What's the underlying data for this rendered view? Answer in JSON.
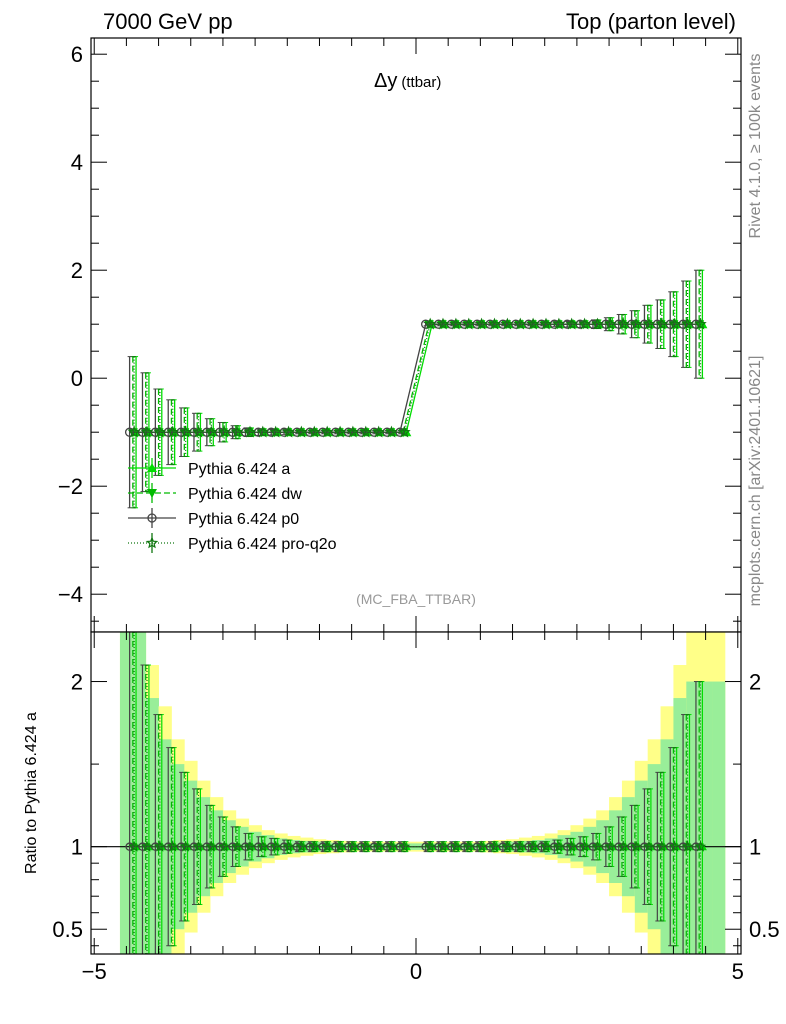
{
  "header": {
    "left": "7000 GeV pp",
    "right": "Top (parton level)"
  },
  "side_labels": {
    "rivet": "Rivet 4.1.0, ≥ 100k events",
    "mcplots": "mcplots.cern.ch [arXiv:2401.10621]"
  },
  "chart_data": {
    "type": "line",
    "title": "Δy (ttbar)",
    "title_main": "Δy",
    "title_sub": "(ttbar)",
    "analysis": "(MC_FBA_TTBAR)",
    "xlabel": "",
    "ylabel": "",
    "xlim": [
      -5.05,
      5.05
    ],
    "ylim": [
      -4.7,
      6.3
    ],
    "x_ticks": [
      -5,
      0,
      5
    ],
    "x_tick_labels": [
      "−5",
      "0",
      "5"
    ],
    "y_ticks": [
      -4,
      -2,
      0,
      2,
      4,
      6
    ],
    "y_tick_labels": [
      "−4",
      "−2",
      "0",
      "2",
      "4",
      "6"
    ],
    "bins": [
      -4.4,
      -4.2,
      -4.0,
      -3.8,
      -3.6,
      -3.4,
      -3.2,
      -3.0,
      -2.8,
      -2.6,
      -2.4,
      -2.2,
      -2.0,
      -1.8,
      -1.6,
      -1.4,
      -1.2,
      -1.0,
      -0.8,
      -0.6,
      -0.4,
      -0.2,
      0.2,
      0.4,
      0.6,
      0.8,
      1.0,
      1.2,
      1.4,
      1.6,
      1.8,
      2.0,
      2.2,
      2.4,
      2.6,
      2.8,
      3.0,
      3.2,
      3.4,
      3.6,
      3.8,
      4.0,
      4.2,
      4.4
    ],
    "series": [
      {
        "name": "Pythia 6.424 a",
        "color": "#00dd00",
        "dash": "",
        "marker": "triangle-up",
        "x_offset": 0.05,
        "values": [
          -1,
          -1,
          -1,
          -1,
          -1,
          -1,
          -1,
          -1,
          -1,
          -1,
          -1,
          -1,
          -1,
          -1,
          -1,
          -1,
          -1,
          -1,
          -1,
          -1,
          -1,
          -1,
          1,
          1,
          1,
          1,
          1,
          1,
          1,
          1,
          1,
          1,
          1,
          1,
          1,
          1,
          1,
          1,
          1,
          1,
          1,
          1,
          1,
          1
        ],
        "errors": [
          1.4,
          1.1,
          0.8,
          0.6,
          0.45,
          0.35,
          0.25,
          0.18,
          0.12,
          0.08,
          0.06,
          0.05,
          0.04,
          0.03,
          0.03,
          0.03,
          0.03,
          0.03,
          0.03,
          0.03,
          0.03,
          0.03,
          0.03,
          0.03,
          0.03,
          0.03,
          0.03,
          0.03,
          0.03,
          0.03,
          0.03,
          0.03,
          0.04,
          0.05,
          0.06,
          0.08,
          0.12,
          0.18,
          0.25,
          0.35,
          0.45,
          0.6,
          0.8,
          1.0
        ]
      },
      {
        "name": "Pythia 6.424 dw",
        "color": "#00bb00",
        "dash": "6,3",
        "marker": "triangle-down",
        "x_offset": 0.0,
        "values": [
          -1,
          -1,
          -1,
          -1,
          -1,
          -1,
          -1,
          -1,
          -1,
          -1,
          -1,
          -1,
          -1,
          -1,
          -1,
          -1,
          -1,
          -1,
          -1,
          -1,
          -1,
          -1,
          1,
          1,
          1,
          1,
          1,
          1,
          1,
          1,
          1,
          1,
          1,
          1,
          1,
          1,
          1,
          1,
          1,
          1,
          1,
          1,
          1,
          1
        ],
        "errors": [
          1.4,
          1.1,
          0.8,
          0.6,
          0.45,
          0.35,
          0.25,
          0.18,
          0.12,
          0.08,
          0.06,
          0.05,
          0.04,
          0.03,
          0.03,
          0.03,
          0.03,
          0.03,
          0.03,
          0.03,
          0.03,
          0.03,
          0.03,
          0.03,
          0.03,
          0.03,
          0.03,
          0.03,
          0.03,
          0.03,
          0.03,
          0.03,
          0.04,
          0.05,
          0.06,
          0.08,
          0.12,
          0.18,
          0.25,
          0.35,
          0.45,
          0.6,
          0.8,
          1.0
        ]
      },
      {
        "name": "Pythia 6.424 p0",
        "color": "#444444",
        "dash": "",
        "marker": "circle",
        "x_offset": -0.05,
        "values": [
          -1,
          -1,
          -1,
          -1,
          -1,
          -1,
          -1,
          -1,
          -1,
          -1,
          -1,
          -1,
          -1,
          -1,
          -1,
          -1,
          -1,
          -1,
          -1,
          -1,
          -1,
          -1,
          1,
          1,
          1,
          1,
          1,
          1,
          1,
          1,
          1,
          1,
          1,
          1,
          1,
          1,
          1,
          1,
          1,
          1,
          1,
          1,
          1,
          1
        ],
        "errors": [
          1.4,
          1.1,
          0.8,
          0.6,
          0.45,
          0.35,
          0.25,
          0.18,
          0.12,
          0.08,
          0.06,
          0.05,
          0.04,
          0.03,
          0.03,
          0.03,
          0.03,
          0.03,
          0.03,
          0.03,
          0.03,
          0.03,
          0.03,
          0.03,
          0.03,
          0.03,
          0.03,
          0.03,
          0.03,
          0.03,
          0.03,
          0.03,
          0.04,
          0.05,
          0.06,
          0.08,
          0.12,
          0.18,
          0.25,
          0.35,
          0.45,
          0.6,
          0.8,
          1.0
        ]
      },
      {
        "name": "Pythia 6.424 pro-q2o",
        "color": "#117711",
        "dash": "1,2",
        "marker": "star",
        "x_offset": 0.02,
        "values": [
          -1,
          -1,
          -1,
          -1,
          -1,
          -1,
          -1,
          -1,
          -1,
          -1,
          -1,
          -1,
          -1,
          -1,
          -1,
          -1,
          -1,
          -1,
          -1,
          -1,
          -1,
          -1,
          1,
          1,
          1,
          1,
          1,
          1,
          1,
          1,
          1,
          1,
          1,
          1,
          1,
          1,
          1,
          1,
          1,
          1,
          1,
          1,
          1,
          1
        ],
        "errors": [
          1.4,
          1.1,
          0.8,
          0.6,
          0.45,
          0.35,
          0.25,
          0.18,
          0.12,
          0.08,
          0.06,
          0.05,
          0.04,
          0.03,
          0.03,
          0.03,
          0.03,
          0.03,
          0.03,
          0.03,
          0.03,
          0.03,
          0.03,
          0.03,
          0.03,
          0.03,
          0.03,
          0.03,
          0.03,
          0.03,
          0.03,
          0.03,
          0.04,
          0.05,
          0.06,
          0.08,
          0.12,
          0.18,
          0.25,
          0.35,
          0.45,
          0.6,
          0.8,
          1.0
        ]
      }
    ],
    "ratio": {
      "ylabel": "Ratio to Pythia 6.424 a",
      "ylim": [
        0.35,
        2.3
      ],
      "y_ticks": [
        0.5,
        1,
        2
      ],
      "y_tick_labels": [
        "0.5",
        "1",
        "2"
      ],
      "band_bins": [
        -4.6,
        -4.4,
        -4.2,
        -4.0,
        -3.8,
        -3.6,
        -3.4,
        -3.2,
        -3.0,
        -2.8,
        -2.6,
        -2.4,
        -2.2,
        -2.0,
        -1.8,
        -1.6,
        -1.4,
        -1.2,
        -1.0,
        -0.8,
        -0.6,
        -0.4,
        -0.2,
        0.0,
        0.2,
        0.4,
        0.6,
        0.8,
        1.0,
        1.2,
        1.4,
        1.6,
        1.8,
        2.0,
        2.2,
        2.4,
        2.6,
        2.8,
        3.0,
        3.2,
        3.4,
        3.6,
        3.8,
        4.0,
        4.2,
        4.4,
        4.6,
        4.8
      ],
      "band_stat": [
        1.6,
        1.3,
        0.9,
        0.65,
        0.5,
        0.4,
        0.3,
        0.22,
        0.16,
        0.12,
        0.09,
        0.07,
        0.05,
        0.04,
        0.035,
        0.03,
        0.025,
        0.02,
        0.02,
        0.02,
        0.02,
        0.02,
        0.02,
        0.02,
        0.02,
        0.02,
        0.02,
        0.02,
        0.02,
        0.025,
        0.03,
        0.035,
        0.04,
        0.05,
        0.07,
        0.09,
        0.12,
        0.16,
        0.22,
        0.3,
        0.4,
        0.5,
        0.65,
        0.9,
        1.0,
        1.0,
        1.0
      ],
      "band_total": [
        1.8,
        1.5,
        1.1,
        0.85,
        0.65,
        0.52,
        0.4,
        0.3,
        0.22,
        0.17,
        0.13,
        0.1,
        0.08,
        0.065,
        0.055,
        0.045,
        0.04,
        0.035,
        0.03,
        0.03,
        0.03,
        0.03,
        0.03,
        0.03,
        0.03,
        0.03,
        0.03,
        0.03,
        0.035,
        0.04,
        0.045,
        0.055,
        0.065,
        0.08,
        0.1,
        0.13,
        0.17,
        0.22,
        0.3,
        0.4,
        0.52,
        0.65,
        0.85,
        1.1,
        1.3,
        1.3,
        1.3
      ]
    }
  }
}
